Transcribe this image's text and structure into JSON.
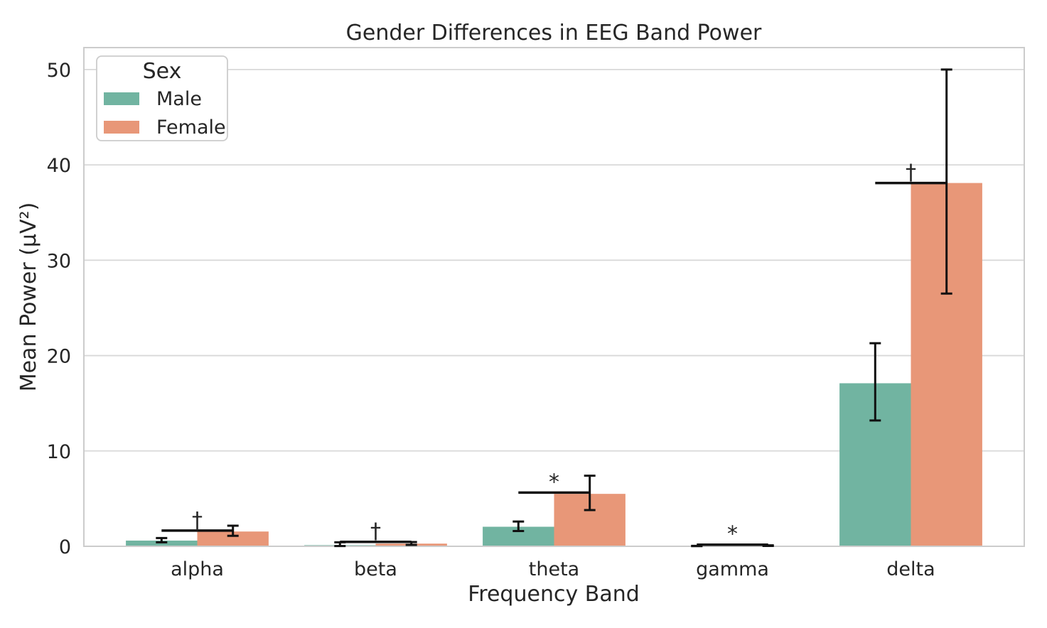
{
  "colors": {
    "background": "#ffffff",
    "grid": "#d9d9d9",
    "spine": "#cccccc",
    "text": "#262626",
    "error_bar": "#111111",
    "significance": "#111111",
    "male": "#71b4a1",
    "female": "#e89778"
  },
  "chart_data": {
    "type": "bar",
    "title": "Gender Differences in EEG Band Power",
    "xlabel": "Frequency Band",
    "ylabel": "Mean Power (μV²)",
    "categories": [
      "alpha",
      "beta",
      "theta",
      "gamma",
      "delta"
    ],
    "ylim": [
      0,
      52.3
    ],
    "yticks": [
      0,
      10,
      20,
      30,
      40,
      50
    ],
    "grid": "horizontal",
    "legend": {
      "title": "Sex",
      "position": "upper left"
    },
    "series": [
      {
        "name": "Male",
        "color": "#71b4a1",
        "values": [
          0.6,
          0.12,
          2.05,
          0.03,
          17.1
        ],
        "error_low": [
          0.42,
          0.03,
          1.6,
          0.02,
          13.2
        ],
        "error_high": [
          0.87,
          0.42,
          2.6,
          0.05,
          21.3
        ]
      },
      {
        "name": "Female",
        "color": "#e89778",
        "values": [
          1.55,
          0.28,
          5.5,
          0.06,
          38.1
        ],
        "error_low": [
          1.1,
          0.15,
          3.8,
          0.04,
          26.5
        ],
        "error_high": [
          2.16,
          0.45,
          7.4,
          0.1,
          50.0
        ]
      }
    ],
    "significance": [
      {
        "category": "alpha",
        "symbol": "†",
        "line_y": 1.65
      },
      {
        "category": "beta",
        "symbol": "†",
        "line_y": 0.47
      },
      {
        "category": "theta",
        "symbol": "*",
        "line_y": 5.63
      },
      {
        "category": "gamma",
        "symbol": "*",
        "line_y": 0.17
      },
      {
        "category": "delta",
        "symbol": "†",
        "line_y": 38.1
      }
    ]
  }
}
